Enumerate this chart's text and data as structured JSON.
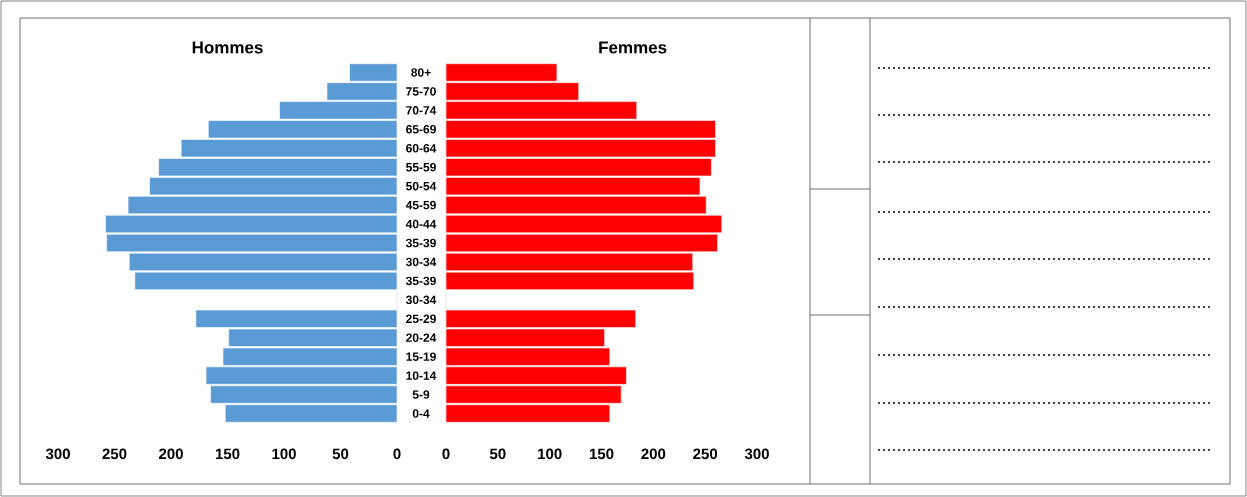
{
  "chart_data": [
    {
      "type": "bar",
      "orientation": "horizontal",
      "title": "Hommes",
      "color": "#5b9bd5",
      "xlim": [
        300,
        0
      ],
      "xticks": [
        0,
        50,
        100,
        150,
        200,
        250,
        300
      ],
      "categories": [
        "80+",
        "75-70",
        "70-74",
        "65-69",
        "60-64",
        "55-59",
        "50-54",
        "45-59",
        "40-44",
        "35-39",
        "30-34",
        "35-39",
        "30-34",
        "25-29",
        "20-24",
        "15-19",
        "10-14",
        "5-9",
        "0-4"
      ],
      "values": [
        42,
        62,
        104,
        167,
        191,
        211,
        219,
        238,
        258,
        257,
        237,
        232,
        null,
        178,
        149,
        154,
        169,
        165,
        152
      ]
    },
    {
      "type": "bar",
      "orientation": "horizontal",
      "title": "Femmes",
      "color": "#ff0000",
      "xlim": [
        0,
        300
      ],
      "xticks": [
        0,
        50,
        100,
        150,
        200,
        250,
        300
      ],
      "categories": [
        null,
        null,
        null,
        null,
        null,
        null,
        null,
        null,
        null,
        null,
        null,
        null,
        null,
        null,
        null,
        null,
        null,
        null,
        null
      ],
      "values": [
        107,
        128,
        184,
        260,
        260,
        256,
        245,
        251,
        266,
        262,
        238,
        239,
        null,
        183,
        153,
        158,
        174,
        169,
        158
      ]
    }
  ]
}
